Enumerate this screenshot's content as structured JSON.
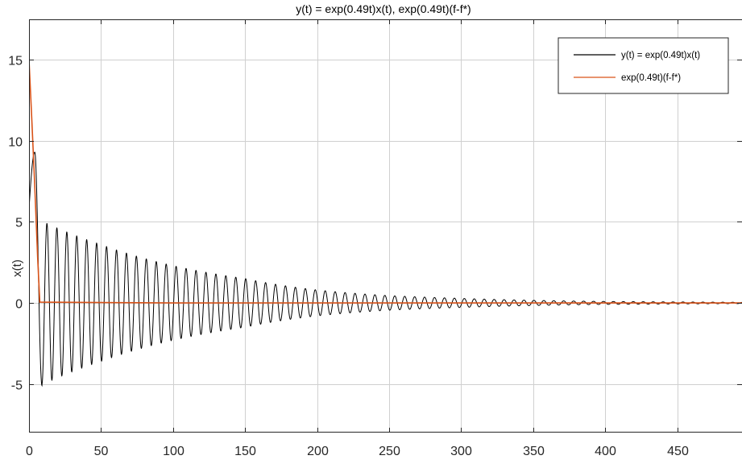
{
  "chart_data": {
    "type": "line",
    "title": "y(t) = exp(0.49t)x(t), exp(0.49t)(f-f*)",
    "xlabel": "",
    "ylabel": "x(t)",
    "xlim": [
      0,
      495
    ],
    "ylim": [
      -8,
      17.5
    ],
    "xticks": [
      0,
      50,
      100,
      150,
      200,
      250,
      300,
      350,
      400,
      450
    ],
    "yticks": [
      -5,
      0,
      5,
      10,
      15
    ],
    "grid": true,
    "legend_position": "top-right",
    "series": [
      {
        "name": "y(t) = exp(0.49t)x(t)",
        "color": "#000000",
        "kind": "damped-oscillation",
        "start_value": 5.8,
        "first_peak": {
          "x": 4,
          "y": 9.3
        },
        "first_trough": {
          "x": 9,
          "y": -5.1
        },
        "period": 6.9,
        "envelope": [
          [
            10,
            5.0
          ],
          [
            50,
            3.6
          ],
          [
            100,
            2.3
          ],
          [
            150,
            1.5
          ],
          [
            200,
            0.8
          ],
          [
            250,
            0.45
          ],
          [
            300,
            0.28
          ],
          [
            350,
            0.16
          ],
          [
            400,
            0.09
          ],
          [
            450,
            0.06
          ],
          [
            495,
            0.04
          ]
        ]
      },
      {
        "name": "exp(0.49t)(f-f*)",
        "color": "#d95319",
        "kind": "line",
        "points": [
          [
            0,
            15.0
          ],
          [
            2,
            11.2
          ],
          [
            4,
            7.2
          ],
          [
            6,
            2.8
          ],
          [
            7.5,
            0.05
          ],
          [
            100,
            0
          ],
          [
            495,
            0
          ]
        ]
      }
    ]
  }
}
